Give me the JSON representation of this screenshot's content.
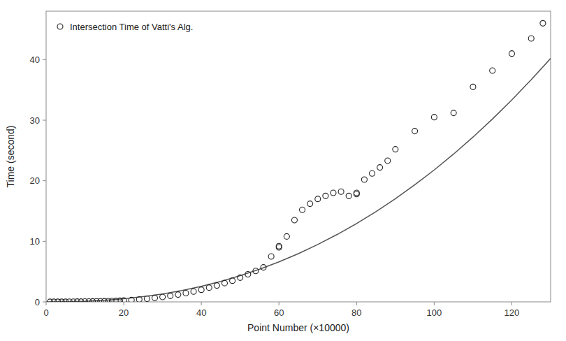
{
  "chart_data": {
    "type": "scatter",
    "xlabel": "Point Number (×10000)",
    "ylabel": "Time (second)",
    "series": [
      {
        "name": "Intersection Time of Vatti's Alg.",
        "type": "scatter",
        "marker": "circle",
        "color": "#222222",
        "x": [
          1,
          2,
          3,
          4,
          5,
          6,
          7,
          8,
          9,
          10,
          11,
          12,
          13,
          14,
          15,
          16,
          17,
          18,
          19,
          20,
          22,
          24,
          26,
          28,
          30,
          32,
          34,
          36,
          38,
          40,
          42,
          44,
          46,
          48,
          50,
          52,
          54,
          56,
          58,
          60,
          60,
          62,
          64,
          66,
          68,
          70,
          72,
          74,
          76,
          78,
          80,
          80,
          82,
          84,
          86,
          88,
          90,
          95,
          100,
          105,
          110,
          115,
          120,
          125,
          128
        ],
        "values": [
          0.01,
          0.01,
          0.02,
          0.02,
          0.02,
          0.03,
          0.03,
          0.04,
          0.04,
          0.05,
          0.06,
          0.07,
          0.08,
          0.09,
          0.1,
          0.12,
          0.14,
          0.16,
          0.19,
          0.22,
          0.3,
          0.4,
          0.52,
          0.65,
          0.8,
          1.0,
          1.2,
          1.45,
          1.7,
          2.0,
          2.35,
          2.7,
          3.1,
          3.5,
          4.0,
          4.55,
          5.1,
          5.7,
          7.5,
          9.0,
          9.2,
          10.8,
          13.5,
          15.2,
          16.2,
          17.0,
          17.5,
          18.0,
          18.2,
          17.5,
          17.8,
          18.0,
          20.2,
          21.2,
          22.2,
          23.3,
          25.2,
          28.2,
          30.5,
          31.2,
          35.5,
          38.2,
          41.0,
          43.5,
          46.0
        ]
      },
      {
        "type": "line",
        "line_style": "solid",
        "color": "#555555",
        "x": [
          0.1,
          5,
          10,
          15,
          20,
          25,
          30,
          35,
          40,
          45,
          50,
          55,
          60,
          65,
          70,
          75,
          80,
          85,
          90,
          95,
          100,
          105,
          110,
          115,
          120,
          125,
          130
        ],
        "values": [
          2.16e-06,
          0.01997,
          0.1008,
          0.2597,
          0.5083,
          0.8558,
          1.31,
          1.878,
          2.564,
          3.376,
          4.318,
          5.394,
          6.609,
          7.967,
          9.472,
          11.13,
          12.94,
          14.91,
          17.03,
          19.33,
          21.78,
          24.41,
          27.21,
          30.19,
          33.34,
          36.68,
          40.2
        ]
      }
    ],
    "xlim": [
      0,
      130
    ],
    "ylim": [
      0,
      48
    ],
    "xticks": [
      0,
      20,
      40,
      60,
      80,
      100,
      120
    ],
    "yticks": [
      0,
      10,
      20,
      30,
      40
    ],
    "grid": false,
    "legend": "upper left"
  }
}
